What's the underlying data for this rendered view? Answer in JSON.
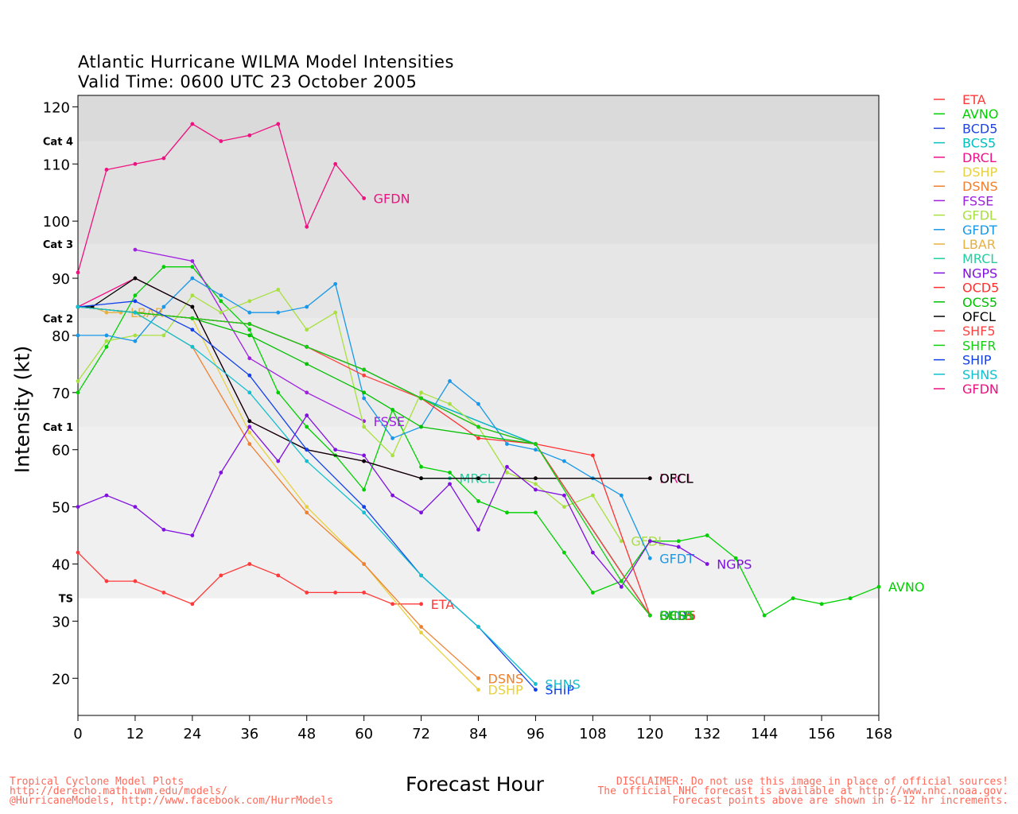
{
  "title": "Atlantic Hurricane WILMA Model Intensities",
  "subtitle": "Valid Time: 0600 UTC 23 October 2005",
  "footer_left": [
    "Tropical Cyclone Model Plots",
    "http://derecho.math.uwm.edu/models/",
    "@HurricaneModels, http://www.facebook.com/HurrModels"
  ],
  "footer_right": [
    "DISCLAIMER: Do not use this image in place of official sources!",
    "The official NHC forecast is available at http://www.nhc.noaa.gov.",
    "Forecast points above are shown in 6-12 hr increments."
  ],
  "chart_data": {
    "type": "line",
    "xlabel": "Forecast Hour",
    "ylabel": "Intensity (kt)",
    "xlim": [
      0,
      168
    ],
    "ylim": [
      13.5,
      122
    ],
    "xticks": [
      0,
      12,
      24,
      36,
      48,
      60,
      72,
      84,
      96,
      108,
      120,
      132,
      144,
      156,
      168
    ],
    "yticks": [
      20,
      30,
      40,
      50,
      60,
      70,
      80,
      90,
      100,
      110,
      120
    ],
    "grid": false,
    "legend_position": "right-outside",
    "category_bands": [
      {
        "label": "TS",
        "from": 34,
        "to": 64,
        "color": "#f0f0f0"
      },
      {
        "label": "Cat 1",
        "from": 64,
        "to": 83,
        "color": "#ebebeb"
      },
      {
        "label": "Cat 2",
        "from": 83,
        "to": 96,
        "color": "#e6e6e6"
      },
      {
        "label": "Cat 3",
        "from": 96,
        "to": 114,
        "color": "#e0e0e0"
      },
      {
        "label": "Cat 4",
        "from": 114,
        "to": 122,
        "color": "#dadada"
      }
    ],
    "series": [
      {
        "name": "ETA",
        "color": "#ff3a3a",
        "end_label": "ETA",
        "points": [
          [
            0,
            42
          ],
          [
            6,
            37
          ],
          [
            12,
            37
          ],
          [
            18,
            35
          ],
          [
            24,
            33
          ],
          [
            30,
            38
          ],
          [
            36,
            40
          ],
          [
            42,
            38
          ],
          [
            48,
            35
          ],
          [
            54,
            35
          ],
          [
            60,
            35
          ],
          [
            66,
            33
          ],
          [
            72,
            33
          ]
        ]
      },
      {
        "name": "AVNO",
        "color": "#00d000",
        "end_label": "AVNO",
        "points": [
          [
            0,
            70
          ],
          [
            6,
            78
          ],
          [
            12,
            87
          ],
          [
            18,
            92
          ],
          [
            24,
            92
          ],
          [
            30,
            86
          ],
          [
            36,
            81
          ],
          [
            42,
            70
          ],
          [
            48,
            64
          ],
          [
            54,
            59
          ],
          [
            60,
            53
          ],
          [
            66,
            67
          ],
          [
            72,
            57
          ],
          [
            78,
            56
          ],
          [
            84,
            51
          ],
          [
            90,
            49
          ],
          [
            96,
            49
          ],
          [
            102,
            42
          ],
          [
            108,
            35
          ],
          [
            114,
            37
          ],
          [
            120,
            44
          ],
          [
            126,
            44
          ],
          [
            132,
            45
          ],
          [
            138,
            41
          ],
          [
            144,
            31
          ],
          [
            150,
            34
          ],
          [
            156,
            33
          ],
          [
            162,
            34
          ],
          [
            168,
            36
          ]
        ]
      },
      {
        "name": "BCD5",
        "color": "#2244dd",
        "end_label": "BCD5",
        "points": [
          [
            0,
            85
          ],
          [
            12,
            84
          ],
          [
            24,
            83
          ],
          [
            36,
            82
          ],
          [
            48,
            78
          ],
          [
            60,
            74
          ],
          [
            72,
            69
          ],
          [
            96,
            61
          ],
          [
            120,
            31
          ]
        ]
      },
      {
        "name": "BCS5",
        "color": "#00c0c0",
        "end_label": "BCS5",
        "points": [
          [
            0,
            85
          ],
          [
            12,
            84
          ],
          [
            24,
            83
          ],
          [
            36,
            82
          ],
          [
            48,
            78
          ],
          [
            60,
            74
          ],
          [
            72,
            69
          ],
          [
            96,
            61
          ],
          [
            120,
            31
          ]
        ]
      },
      {
        "name": "DRCL",
        "color": "#ee1188",
        "end_label": "DRCL",
        "points": [
          [
            0,
            85
          ],
          [
            12,
            90
          ],
          [
            24,
            85
          ],
          [
            36,
            65
          ],
          [
            48,
            60
          ],
          [
            60,
            58
          ],
          [
            72,
            55
          ],
          [
            96,
            55
          ],
          [
            120,
            55
          ]
        ]
      },
      {
        "name": "DSHP",
        "color": "#e8d040",
        "end_label": "DSHP",
        "points": [
          [
            0,
            85
          ],
          [
            12,
            84
          ],
          [
            24,
            83
          ],
          [
            36,
            63
          ],
          [
            48,
            50
          ],
          [
            60,
            40
          ],
          [
            72,
            28
          ],
          [
            84,
            18
          ]
        ]
      },
      {
        "name": "DSNS",
        "color": "#f08030",
        "end_label": "DSNS",
        "points": [
          [
            0,
            85
          ],
          [
            12,
            84
          ],
          [
            24,
            78
          ],
          [
            36,
            61
          ],
          [
            48,
            49
          ],
          [
            60,
            40
          ],
          [
            72,
            29
          ],
          [
            84,
            20
          ]
        ]
      },
      {
        "name": "FSSE",
        "color": "#a020e0",
        "end_label": "FSSE",
        "points": [
          [
            12,
            95
          ],
          [
            24,
            93
          ],
          [
            36,
            76
          ],
          [
            48,
            70
          ],
          [
            60,
            65
          ]
        ]
      },
      {
        "name": "GFDL",
        "color": "#a8e040",
        "end_label": "GFDL",
        "points": [
          [
            0,
            72
          ],
          [
            6,
            79
          ],
          [
            12,
            80
          ],
          [
            18,
            80
          ],
          [
            24,
            87
          ],
          [
            30,
            84
          ],
          [
            36,
            86
          ],
          [
            42,
            88
          ],
          [
            48,
            81
          ],
          [
            54,
            84
          ],
          [
            60,
            64
          ],
          [
            66,
            59
          ],
          [
            72,
            70
          ],
          [
            78,
            68
          ],
          [
            84,
            64
          ],
          [
            90,
            56
          ],
          [
            96,
            54
          ],
          [
            102,
            50
          ],
          [
            108,
            52
          ],
          [
            114,
            44
          ]
        ]
      },
      {
        "name": "GFDT",
        "color": "#1898e8",
        "end_label": "GFDT",
        "points": [
          [
            0,
            80
          ],
          [
            6,
            80
          ],
          [
            12,
            79
          ],
          [
            18,
            85
          ],
          [
            24,
            90
          ],
          [
            30,
            87
          ],
          [
            36,
            84
          ],
          [
            42,
            84
          ],
          [
            48,
            85
          ],
          [
            54,
            89
          ],
          [
            60,
            69
          ],
          [
            66,
            62
          ],
          [
            72,
            64
          ],
          [
            78,
            72
          ],
          [
            84,
            68
          ],
          [
            90,
            61
          ],
          [
            96,
            60
          ],
          [
            102,
            58
          ],
          [
            108,
            55
          ],
          [
            114,
            52
          ],
          [
            120,
            41
          ]
        ]
      },
      {
        "name": "LBAR",
        "color": "#e8b040",
        "end_label": "LBAR",
        "points": [
          [
            0,
            85
          ],
          [
            3,
            85
          ],
          [
            6,
            84
          ],
          [
            9,
            84
          ]
        ]
      },
      {
        "name": "MRCL",
        "color": "#20d0a0",
        "end_label": "MRCL",
        "points": [
          [
            72,
            55
          ],
          [
            78,
            55
          ]
        ]
      },
      {
        "name": "NGPS",
        "color": "#8010e0",
        "end_label": "NGPS",
        "points": [
          [
            0,
            50
          ],
          [
            6,
            52
          ],
          [
            12,
            50
          ],
          [
            18,
            46
          ],
          [
            24,
            45
          ],
          [
            30,
            56
          ],
          [
            36,
            64
          ],
          [
            42,
            58
          ],
          [
            48,
            66
          ],
          [
            54,
            60
          ],
          [
            60,
            59
          ],
          [
            66,
            52
          ],
          [
            72,
            49
          ],
          [
            78,
            54
          ],
          [
            84,
            46
          ],
          [
            90,
            57
          ],
          [
            96,
            53
          ],
          [
            102,
            52
          ],
          [
            108,
            42
          ],
          [
            114,
            36
          ],
          [
            120,
            44
          ],
          [
            126,
            43
          ],
          [
            132,
            40
          ]
        ]
      },
      {
        "name": "OCD5",
        "color": "#ff3030",
        "end_label": "OCD5",
        "points": [
          [
            0,
            85
          ],
          [
            12,
            84
          ],
          [
            24,
            83
          ],
          [
            36,
            82
          ],
          [
            48,
            78
          ],
          [
            60,
            74
          ],
          [
            72,
            69
          ],
          [
            84,
            62
          ],
          [
            96,
            61
          ],
          [
            108,
            59
          ],
          [
            120,
            31
          ]
        ]
      },
      {
        "name": "OCS5",
        "color": "#00c000",
        "end_label": "OCS5",
        "points": [
          [
            0,
            85
          ],
          [
            12,
            84
          ],
          [
            24,
            83
          ],
          [
            36,
            80
          ],
          [
            48,
            75
          ],
          [
            60,
            70
          ],
          [
            72,
            64
          ],
          [
            96,
            61
          ],
          [
            120,
            31
          ]
        ]
      },
      {
        "name": "OFCL",
        "color": "#000000",
        "end_label": "OFCL",
        "points": [
          [
            0,
            85
          ],
          [
            3,
            85
          ],
          [
            12,
            90
          ],
          [
            24,
            85
          ],
          [
            36,
            65
          ],
          [
            48,
            60
          ],
          [
            60,
            58
          ],
          [
            72,
            55
          ],
          [
            84,
            55
          ],
          [
            96,
            55
          ],
          [
            120,
            55
          ]
        ]
      },
      {
        "name": "SHF5",
        "color": "#ff4040",
        "end_label": "SHF5",
        "points": [
          [
            0,
            85
          ],
          [
            12,
            84
          ],
          [
            24,
            83
          ],
          [
            36,
            82
          ],
          [
            48,
            78
          ],
          [
            60,
            73
          ],
          [
            72,
            69
          ],
          [
            84,
            64
          ],
          [
            96,
            61
          ],
          [
            120,
            31
          ]
        ]
      },
      {
        "name": "SHFR",
        "color": "#10d010",
        "end_label": "SHFR",
        "points": [
          [
            0,
            85
          ],
          [
            12,
            84
          ],
          [
            24,
            83
          ],
          [
            36,
            82
          ],
          [
            48,
            78
          ],
          [
            60,
            74
          ],
          [
            72,
            69
          ],
          [
            84,
            64
          ],
          [
            96,
            61
          ],
          [
            114,
            37
          ],
          [
            120,
            31
          ]
        ]
      },
      {
        "name": "SHIP",
        "color": "#1040ee",
        "end_label": "SHIP",
        "points": [
          [
            0,
            85
          ],
          [
            12,
            86
          ],
          [
            24,
            81
          ],
          [
            36,
            73
          ],
          [
            48,
            60
          ],
          [
            60,
            50
          ],
          [
            72,
            38
          ],
          [
            84,
            29
          ],
          [
            96,
            18
          ]
        ]
      },
      {
        "name": "SHNS",
        "color": "#10c0d0",
        "end_label": "SHNS",
        "points": [
          [
            0,
            85
          ],
          [
            12,
            84
          ],
          [
            24,
            78
          ],
          [
            36,
            70
          ],
          [
            48,
            58
          ],
          [
            60,
            49
          ],
          [
            72,
            38
          ],
          [
            84,
            29
          ],
          [
            96,
            19
          ]
        ]
      },
      {
        "name": "GFDN",
        "color": "#ee1180",
        "end_label": "GFDN",
        "points": [
          [
            0,
            91
          ],
          [
            6,
            109
          ],
          [
            12,
            110
          ],
          [
            18,
            111
          ],
          [
            24,
            117
          ],
          [
            30,
            114
          ],
          [
            36,
            115
          ],
          [
            42,
            117
          ],
          [
            48,
            99
          ],
          [
            54,
            110
          ],
          [
            60,
            104
          ]
        ]
      }
    ]
  }
}
